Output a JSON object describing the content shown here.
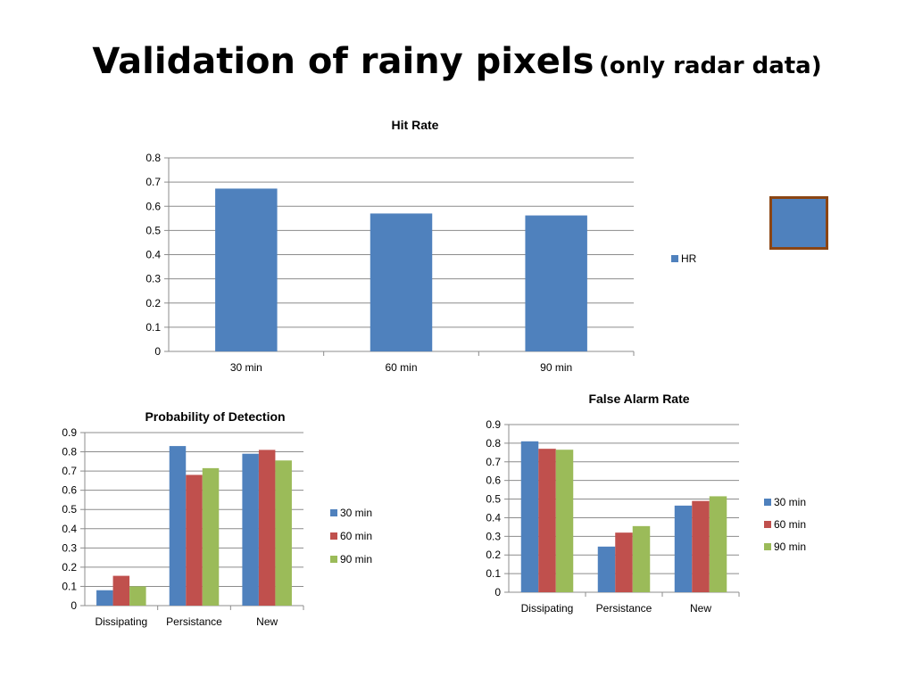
{
  "slide": {
    "title_main": "Validation of rainy pixels",
    "title_sub": "(only radar data)"
  },
  "colors": {
    "blue": "#4f81bd",
    "red": "#c0504d",
    "green": "#9bbb59",
    "grid": "#8c8c8c",
    "thumb_border": "#8b4513"
  },
  "chart_data": [
    {
      "type": "bar",
      "title": "Hit Rate",
      "categories": [
        "30 min",
        "60 min",
        "90 min"
      ],
      "series": [
        {
          "name": "HR",
          "values": [
            0.673,
            0.57,
            0.562
          ]
        }
      ],
      "ylim": [
        0,
        0.8
      ],
      "yticks": [
        "0",
        "0.1",
        "0.2",
        "0.3",
        "0.4",
        "0.5",
        "0.6",
        "0.7",
        "0.8"
      ],
      "grid": true,
      "legend": "right"
    },
    {
      "type": "bar",
      "title": "Probability of Detection",
      "categories": [
        "Dissipating",
        "Persistance",
        "New"
      ],
      "series": [
        {
          "name": "30 min",
          "values": [
            0.08,
            0.83,
            0.79
          ]
        },
        {
          "name": "60 min",
          "values": [
            0.155,
            0.68,
            0.81
          ]
        },
        {
          "name": "90 min",
          "values": [
            0.1,
            0.715,
            0.755
          ]
        }
      ],
      "ylim": [
        0,
        0.9
      ],
      "yticks": [
        "0",
        "0.1",
        "0.2",
        "0.3",
        "0.4",
        "0.5",
        "0.6",
        "0.7",
        "0.8",
        "0.9"
      ],
      "grid": true,
      "legend": "right"
    },
    {
      "type": "bar",
      "title": "False Alarm Rate",
      "categories": [
        "Dissipating",
        "Persistance",
        "New"
      ],
      "series": [
        {
          "name": "30 min",
          "values": [
            0.81,
            0.245,
            0.465
          ]
        },
        {
          "name": "60 min",
          "values": [
            0.77,
            0.32,
            0.49
          ]
        },
        {
          "name": "90 min",
          "values": [
            0.765,
            0.355,
            0.515
          ]
        }
      ],
      "ylim": [
        0,
        0.9
      ],
      "yticks": [
        "0",
        "0.1",
        "0.2",
        "0.3",
        "0.4",
        "0.5",
        "0.6",
        "0.7",
        "0.8",
        "0.9"
      ],
      "grid": true,
      "legend": "right"
    }
  ]
}
